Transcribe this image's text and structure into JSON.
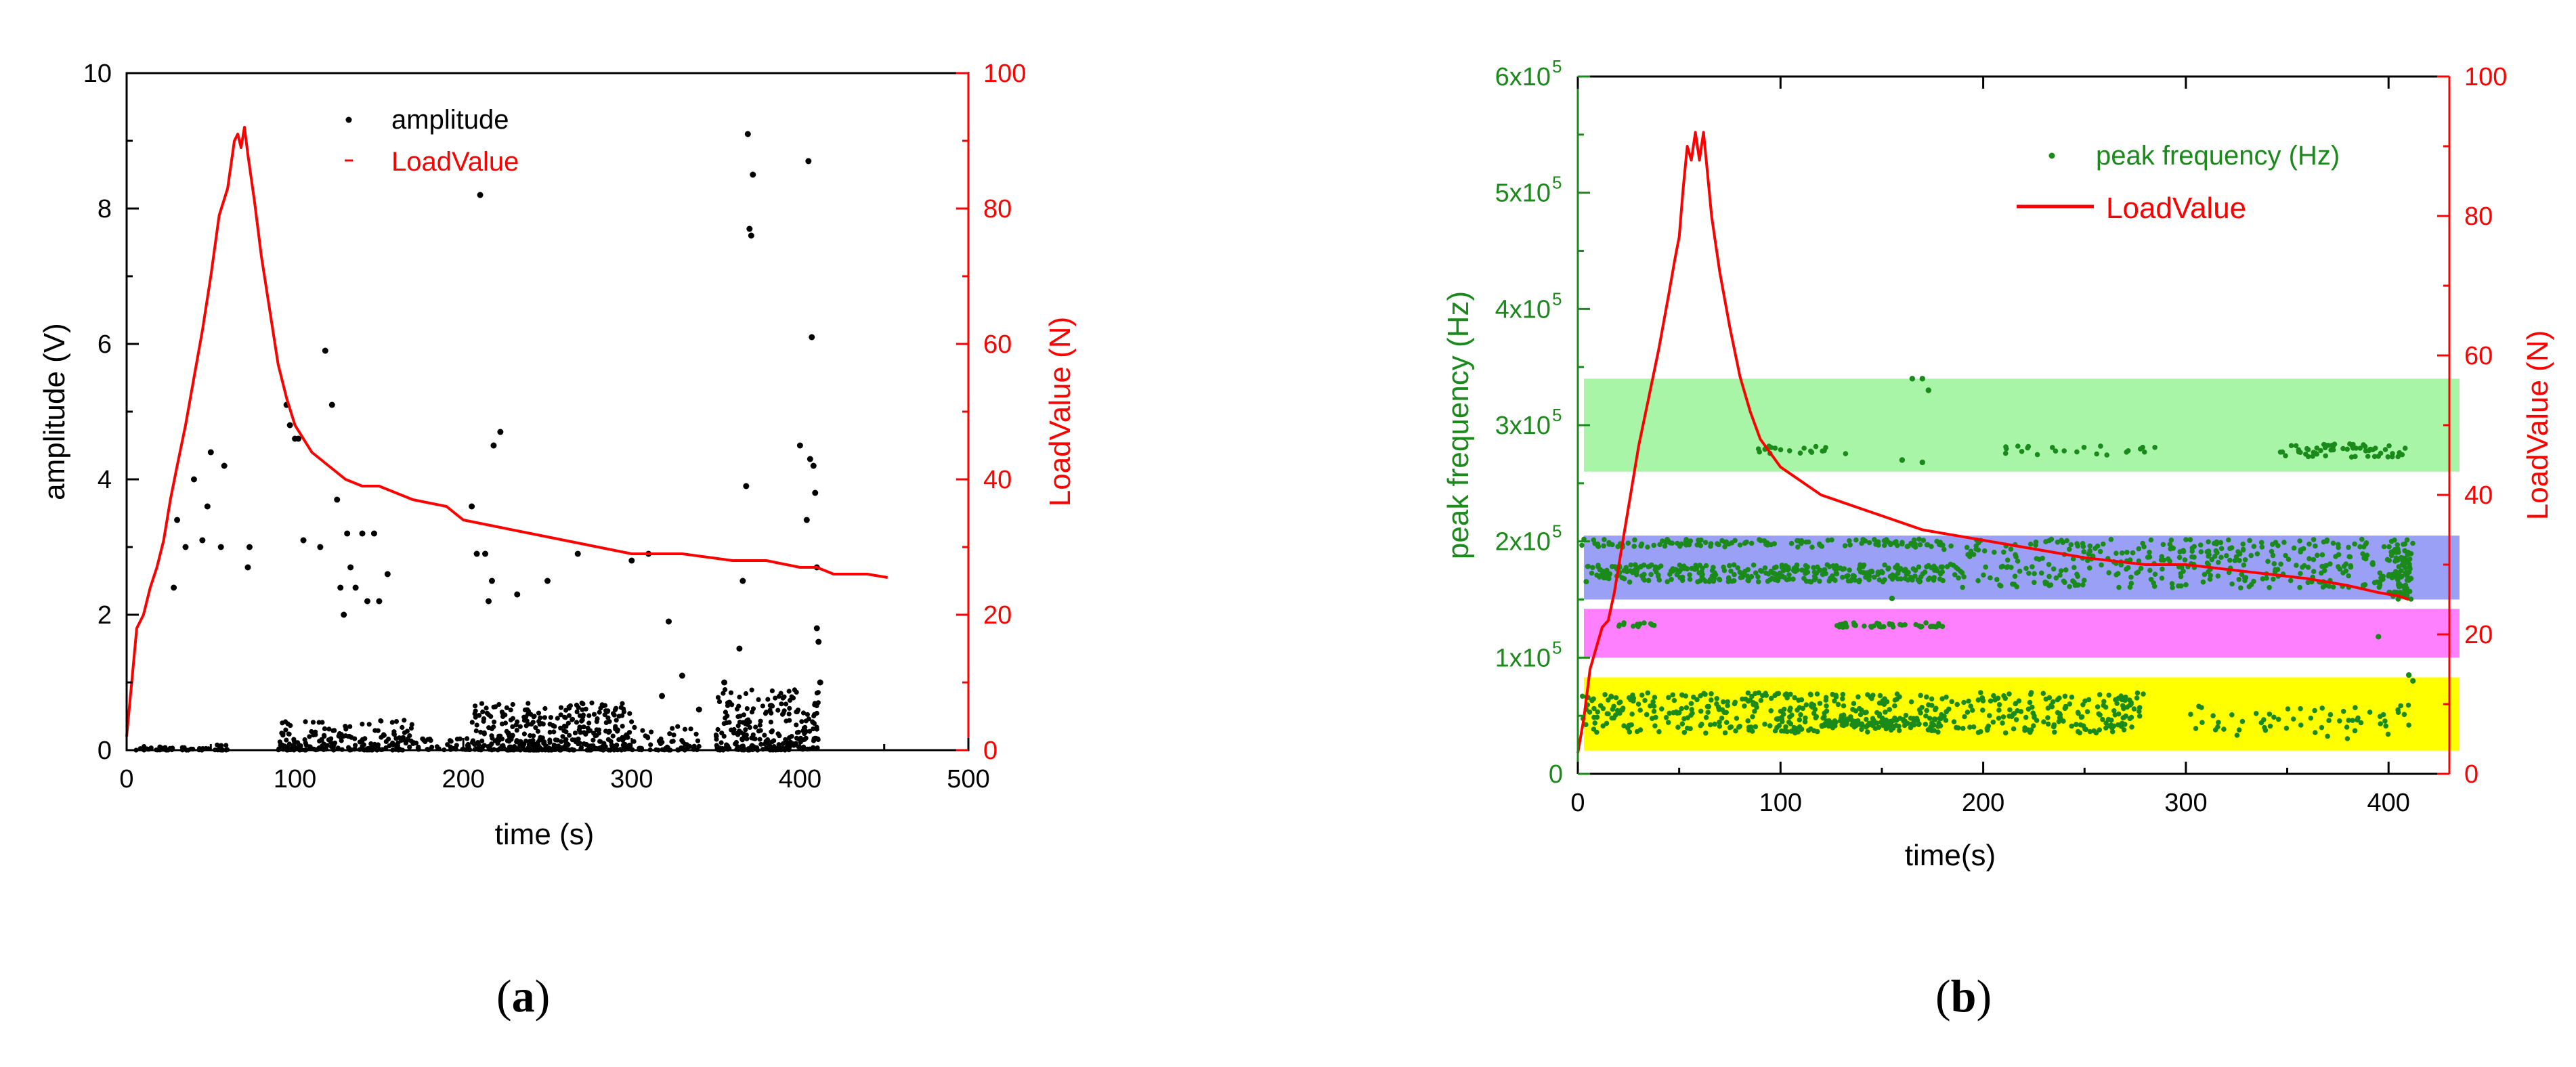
{
  "captions": {
    "a": "a",
    "b": "b"
  },
  "colors": {
    "black": "#000000",
    "red": "#ff0000",
    "green": "#1a8a1a",
    "band_green": "#a8f5a8",
    "band_blue": "#9aa0f5",
    "band_magenta": "#ff80ff",
    "band_yellow": "#ffff00"
  },
  "chart_data": [
    {
      "id": "a",
      "type": "scatter",
      "xlabel": "time (s)",
      "ylabel": "amplitude (V)",
      "y2label": "LoadValue (N)",
      "xlim": [
        0,
        500
      ],
      "ylim": [
        0,
        10
      ],
      "y2lim": [
        0,
        100
      ],
      "xticks": [
        0,
        100,
        200,
        300,
        400,
        500
      ],
      "yticks": [
        0,
        2,
        4,
        6,
        8,
        10
      ],
      "y2ticks": [
        0,
        20,
        40,
        60,
        80,
        100
      ],
      "legend": {
        "position": "top-center",
        "entries": [
          "amplitude",
          "LoadValue"
        ]
      },
      "series": [
        {
          "name": "amplitude",
          "kind": "scatter",
          "axis": "left",
          "color": "#000000",
          "points": [
            [
              28,
              2.4
            ],
            [
              30,
              3.4
            ],
            [
              35,
              3.0
            ],
            [
              40,
              4.0
            ],
            [
              45,
              3.1
            ],
            [
              48,
              3.6
            ],
            [
              50,
              4.4
            ],
            [
              56,
              3.0
            ],
            [
              58,
              4.2
            ],
            [
              72,
              2.7
            ],
            [
              73,
              3.0
            ],
            [
              95,
              5.1
            ],
            [
              97,
              4.8
            ],
            [
              100,
              4.6
            ],
            [
              102,
              4.6
            ],
            [
              105,
              3.1
            ],
            [
              115,
              3.0
            ],
            [
              118,
              5.9
            ],
            [
              122,
              5.1
            ],
            [
              125,
              3.7
            ],
            [
              127,
              2.4
            ],
            [
              129,
              2.0
            ],
            [
              131,
              3.2
            ],
            [
              133,
              2.7
            ],
            [
              136,
              2.4
            ],
            [
              140,
              3.2
            ],
            [
              143,
              2.2
            ],
            [
              147,
              3.2
            ],
            [
              150,
              2.2
            ],
            [
              155,
              2.6
            ],
            [
              205,
              3.6
            ],
            [
              208,
              2.9
            ],
            [
              210,
              8.2
            ],
            [
              213,
              2.9
            ],
            [
              215,
              2.2
            ],
            [
              217,
              2.5
            ],
            [
              218,
              4.5
            ],
            [
              222,
              4.7
            ],
            [
              232,
              2.3
            ],
            [
              250,
              2.5
            ],
            [
              268,
              2.9
            ],
            [
              300,
              2.8
            ],
            [
              310,
              2.9
            ],
            [
              322,
              1.9
            ],
            [
              330,
              1.1
            ],
            [
              355,
              1.0
            ],
            [
              364,
              1.5
            ],
            [
              366,
              2.5
            ],
            [
              368,
              3.9
            ],
            [
              369,
              9.1
            ],
            [
              370,
              7.7
            ],
            [
              371,
              7.6
            ],
            [
              372,
              8.5
            ],
            [
              400,
              4.5
            ],
            [
              404,
              3.4
            ],
            [
              405,
              8.7
            ],
            [
              406,
              4.3
            ],
            [
              407,
              6.1
            ],
            [
              408,
              4.2
            ],
            [
              409,
              3.8
            ],
            [
              410,
              2.7
            ],
            [
              410,
              1.8
            ],
            [
              411,
              1.6
            ],
            [
              412,
              1.0
            ],
            [
              318,
              0.8
            ],
            [
              340,
              0.6
            ],
            [
              358,
              0.7
            ]
          ],
          "dense_regions": [
            {
              "x_from": 5,
              "x_to": 60,
              "y_max": 0.08,
              "count": 50
            },
            {
              "x_from": 90,
              "x_to": 170,
              "y_max": 0.45,
              "count": 200
            },
            {
              "x_from": 170,
              "x_to": 205,
              "y_max": 0.2,
              "count": 40
            },
            {
              "x_from": 205,
              "x_to": 300,
              "y_max": 0.7,
              "count": 400
            },
            {
              "x_from": 300,
              "x_to": 340,
              "y_max": 0.35,
              "count": 60
            },
            {
              "x_from": 350,
              "x_to": 412,
              "y_max": 0.9,
              "count": 250
            }
          ]
        },
        {
          "name": "LoadValue",
          "kind": "line",
          "axis": "right",
          "color": "#ff0000",
          "points": [
            [
              0,
              2
            ],
            [
              3,
              10
            ],
            [
              6,
              18
            ],
            [
              10,
              20
            ],
            [
              14,
              24
            ],
            [
              18,
              27
            ],
            [
              22,
              31
            ],
            [
              26,
              37
            ],
            [
              30,
              42
            ],
            [
              35,
              48
            ],
            [
              40,
              55
            ],
            [
              45,
              62
            ],
            [
              50,
              70
            ],
            [
              55,
              79
            ],
            [
              60,
              83
            ],
            [
              64,
              90
            ],
            [
              66,
              91
            ],
            [
              68,
              89
            ],
            [
              70,
              92
            ],
            [
              72,
              88
            ],
            [
              76,
              81
            ],
            [
              80,
              73
            ],
            [
              85,
              65
            ],
            [
              90,
              57
            ],
            [
              95,
              52
            ],
            [
              100,
              48
            ],
            [
              110,
              44
            ],
            [
              120,
              42
            ],
            [
              130,
              40
            ],
            [
              140,
              39
            ],
            [
              150,
              39
            ],
            [
              170,
              37
            ],
            [
              190,
              36
            ],
            [
              200,
              34
            ],
            [
              220,
              33
            ],
            [
              240,
              32
            ],
            [
              260,
              31
            ],
            [
              280,
              30
            ],
            [
              300,
              29
            ],
            [
              330,
              29
            ],
            [
              360,
              28
            ],
            [
              380,
              28
            ],
            [
              400,
              27
            ],
            [
              410,
              27
            ],
            [
              420,
              26
            ],
            [
              440,
              26
            ],
            [
              452,
              25.5
            ]
          ]
        }
      ]
    },
    {
      "id": "b",
      "type": "scatter",
      "xlabel": "time(s)",
      "ylabel": "peak frequency (Hz)",
      "y2label": "LoadValue (N)",
      "xlim": [
        0,
        430
      ],
      "ylim": [
        0,
        600000
      ],
      "y2lim": [
        0,
        100
      ],
      "xticks": [
        0,
        100,
        200,
        300,
        400
      ],
      "ytick_labels": [
        "0",
        "1x10",
        "2x10",
        "3x10",
        "4x10",
        "5x10",
        "6x10"
      ],
      "ytick_exponent": "5",
      "y2ticks": [
        0,
        20,
        40,
        60,
        80,
        100
      ],
      "legend": {
        "position": "top-right",
        "entries": [
          "peak frequency (Hz)",
          "LoadValue"
        ]
      },
      "bands": [
        {
          "name": "green-band",
          "y_from": 260000,
          "y_to": 340000,
          "x_from": 3,
          "x_to": 435,
          "color": "#a8f5a8"
        },
        {
          "name": "blue-band",
          "y_from": 150000,
          "y_to": 205000,
          "x_from": 3,
          "x_to": 435,
          "color": "#9aa0f5"
        },
        {
          "name": "magenta-band",
          "y_from": 100000,
          "y_to": 142000,
          "x_from": 3,
          "x_to": 435,
          "color": "#ff80ff"
        },
        {
          "name": "yellow-band",
          "y_from": 20000,
          "y_to": 83000,
          "x_from": 3,
          "x_to": 435,
          "color": "#ffff00"
        }
      ],
      "series": [
        {
          "name": "peak frequency (Hz)",
          "kind": "scatter",
          "axis": "left",
          "color": "#1a8a1a",
          "points": [
            [
              165,
              340000
            ],
            [
              170,
              340000
            ],
            [
              173,
              330000
            ],
            [
              160,
              270000
            ],
            [
              170,
              268000
            ],
            [
              395,
              118000
            ],
            [
              155,
              151000
            ],
            [
              410,
              85000
            ],
            [
              412,
              80000
            ]
          ],
          "dense_regions": [
            {
              "x_from": 85,
              "x_to": 140,
              "y_lo": 275000,
              "y_hi": 282000,
              "count": 18
            },
            {
              "x_from": 210,
              "x_to": 290,
              "y_lo": 274000,
              "y_hi": 282000,
              "count": 22
            },
            {
              "x_from": 345,
              "x_to": 410,
              "y_lo": 272000,
              "y_hi": 284000,
              "count": 60
            },
            {
              "x_from": 2,
              "x_to": 180,
              "y_lo": 195000,
              "y_hi": 202000,
              "count": 130
            },
            {
              "x_from": 2,
              "x_to": 180,
              "y_lo": 165000,
              "y_hi": 180000,
              "count": 320
            },
            {
              "x_from": 180,
              "x_to": 410,
              "y_lo": 160000,
              "y_hi": 202000,
              "count": 380
            },
            {
              "x_from": 400,
              "x_to": 412,
              "y_lo": 150000,
              "y_hi": 202000,
              "count": 80
            },
            {
              "x_from": 20,
              "x_to": 40,
              "y_lo": 126000,
              "y_hi": 130000,
              "count": 12
            },
            {
              "x_from": 125,
              "x_to": 180,
              "y_lo": 126000,
              "y_hi": 130000,
              "count": 45
            },
            {
              "x_from": 2,
              "x_to": 280,
              "y_lo": 35000,
              "y_hi": 70000,
              "count": 520
            },
            {
              "x_from": 300,
              "x_to": 412,
              "y_lo": 30000,
              "y_hi": 60000,
              "count": 60
            },
            {
              "x_from": 120,
              "x_to": 180,
              "y_lo": 40000,
              "y_hi": 48000,
              "count": 80
            }
          ]
        },
        {
          "name": "LoadValue",
          "kind": "line",
          "axis": "right",
          "color": "#ff0000",
          "points": [
            [
              0,
              3
            ],
            [
              3,
              8
            ],
            [
              6,
              15
            ],
            [
              10,
              19
            ],
            [
              12,
              21
            ],
            [
              15,
              22
            ],
            [
              18,
              26
            ],
            [
              22,
              33
            ],
            [
              26,
              40
            ],
            [
              30,
              47
            ],
            [
              35,
              54
            ],
            [
              40,
              61
            ],
            [
              45,
              69
            ],
            [
              48,
              74
            ],
            [
              50,
              77
            ],
            [
              52,
              84
            ],
            [
              54,
              90
            ],
            [
              56,
              88
            ],
            [
              58,
              92
            ],
            [
              60,
              88
            ],
            [
              62,
              92
            ],
            [
              64,
              86
            ],
            [
              66,
              80
            ],
            [
              70,
              72
            ],
            [
              75,
              64
            ],
            [
              80,
              57
            ],
            [
              85,
              52
            ],
            [
              90,
              48
            ],
            [
              100,
              44
            ],
            [
              110,
              42
            ],
            [
              120,
              40
            ],
            [
              130,
              39
            ],
            [
              140,
              38
            ],
            [
              150,
              37
            ],
            [
              160,
              36
            ],
            [
              170,
              35
            ],
            [
              190,
              34
            ],
            [
              210,
              33
            ],
            [
              230,
              32
            ],
            [
              250,
              31
            ],
            [
              280,
              30
            ],
            [
              300,
              30
            ],
            [
              330,
              29
            ],
            [
              360,
              28
            ],
            [
              380,
              27
            ],
            [
              395,
              26
            ],
            [
              405,
              25.5
            ],
            [
              410,
              25
            ]
          ]
        }
      ]
    }
  ]
}
